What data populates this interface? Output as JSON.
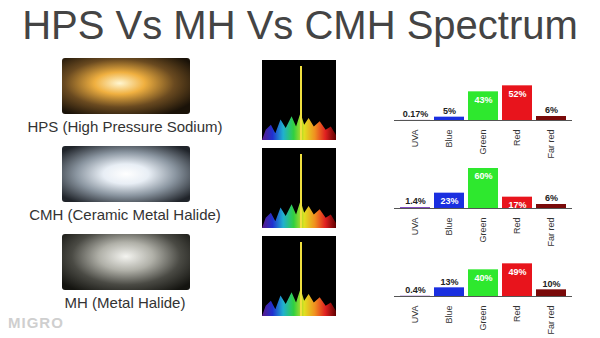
{
  "title": "HPS Vs MH Vs CMH Spectrum",
  "watermark": "MIGRO",
  "chart_data": [
    {
      "type": "bar",
      "title": "HPS (High Pressure Sodium)",
      "categories": [
        "UVA",
        "Blue",
        "Green",
        "Red",
        "Far red"
      ],
      "values": [
        0.17,
        5,
        43,
        52,
        6
      ],
      "value_labels": [
        "0.17%",
        "5%",
        "43%",
        "52%",
        "6%"
      ],
      "colors": [
        "#7a3fbf",
        "#1a2fe0",
        "#2ee82e",
        "#e8141c",
        "#7a0a0a"
      ],
      "ylim": [
        0,
        60
      ],
      "data_labels": true,
      "tick_labels": "x"
    },
    {
      "type": "bar",
      "title": "CMH (Ceramic Metal Halide)",
      "categories": [
        "UVA",
        "Blue",
        "Green",
        "Red",
        "Far red"
      ],
      "values": [
        1.4,
        23,
        60,
        17,
        6
      ],
      "value_labels": [
        "1.4%",
        "23%",
        "60%",
        "17%",
        "6%"
      ],
      "colors": [
        "#7a3fbf",
        "#1a2fe0",
        "#2ee82e",
        "#e8141c",
        "#7a0a0a"
      ],
      "ylim": [
        0,
        60
      ],
      "data_labels": true,
      "tick_labels": "x"
    },
    {
      "type": "bar",
      "title": "MH (Metal Halide)",
      "categories": [
        "UVA",
        "Blue",
        "Green",
        "Red",
        "Far red"
      ],
      "values": [
        0.4,
        13,
        40,
        49,
        10
      ],
      "value_labels": [
        "0.4%",
        "13%",
        "40%",
        "49%",
        "10%"
      ],
      "colors": [
        "#7a3fbf",
        "#1a2fe0",
        "#2ee82e",
        "#e8141c",
        "#7a0a0a"
      ],
      "ylim": [
        0,
        60
      ],
      "data_labels": true,
      "tick_labels": "x"
    }
  ]
}
